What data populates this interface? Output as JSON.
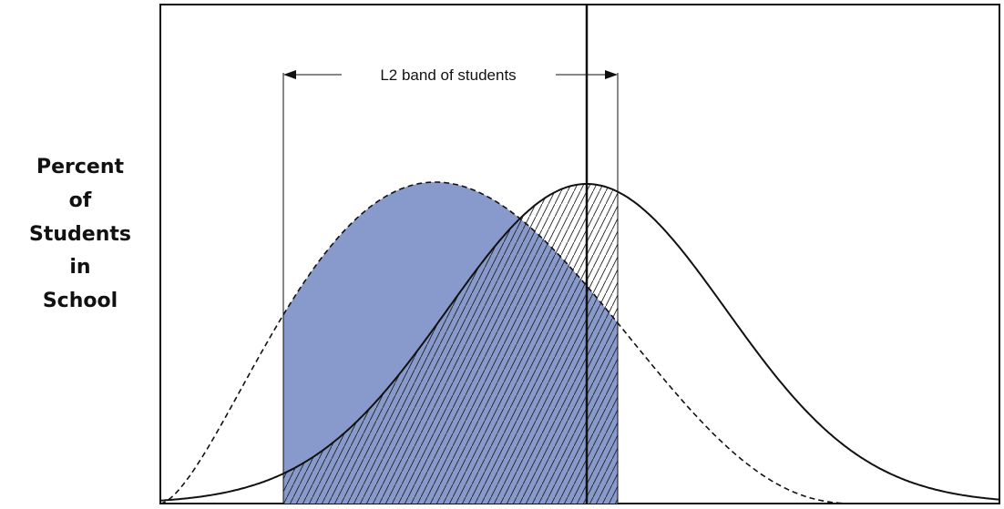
{
  "y_axis_label": {
    "lines": [
      "Percent",
      "of",
      "Students",
      "in",
      "School"
    ]
  },
  "annotation": "L2 band of students"
}
